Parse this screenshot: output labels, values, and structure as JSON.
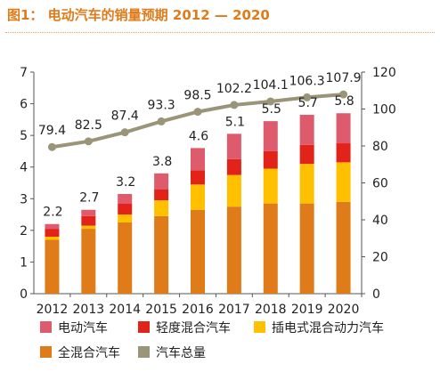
{
  "title": "图1： 电动汽车的销量预期 2012 — 2020",
  "chart_data": {
    "type": "bar",
    "stacked": true,
    "categories": [
      "2012",
      "2013",
      "2014",
      "2015",
      "2016",
      "2017",
      "2018",
      "2019",
      "2020"
    ],
    "series": [
      {
        "name": "全混合汽车",
        "color": "#e07b19",
        "values": [
          1.7,
          2.05,
          2.25,
          2.45,
          2.65,
          2.75,
          2.85,
          2.85,
          2.9
        ]
      },
      {
        "name": "插电式混合动力汽车",
        "color": "#ffc000",
        "values": [
          0.1,
          0.1,
          0.25,
          0.5,
          0.8,
          1.0,
          1.1,
          1.25,
          1.25
        ]
      },
      {
        "name": "轻度混合汽车",
        "color": "#e2231a",
        "values": [
          0.25,
          0.3,
          0.35,
          0.35,
          0.45,
          0.5,
          0.55,
          0.6,
          0.6
        ]
      },
      {
        "name": "电动汽车",
        "color": "#de5b6d",
        "values": [
          0.15,
          0.2,
          0.3,
          0.5,
          0.7,
          0.8,
          0.95,
          0.95,
          0.95
        ]
      }
    ],
    "bar_labels": [
      "2.2",
      "2.7",
      "3.2",
      "3.8",
      "4.6",
      "5.1",
      "5.5",
      "5.7",
      "5.8"
    ],
    "line": {
      "name": "汽车总量",
      "color": "#9a9478",
      "axis": "right",
      "values": [
        79.4,
        82.5,
        87.4,
        93.3,
        98.5,
        102.2,
        104.1,
        106.3,
        107.9
      ],
      "labels": [
        "79.4",
        "82.5",
        "87.4",
        "93.3",
        "98.5",
        "102.2",
        "104.1",
        "106.3",
        "107.9"
      ]
    },
    "y_left": {
      "min": 0,
      "max": 7,
      "ticks": [
        "0",
        "1",
        "2",
        "3",
        "4",
        "5",
        "6",
        "7"
      ]
    },
    "y_right": {
      "min": 0,
      "max": 120,
      "ticks": [
        "0",
        "20",
        "40",
        "60",
        "80",
        "100",
        "120"
      ]
    },
    "legend": [
      {
        "label": "电动汽车",
        "color": "#de5b6d"
      },
      {
        "label": "轻度混合汽车",
        "color": "#e2231a"
      },
      {
        "label": "插电式混合动力汽车",
        "color": "#ffc000"
      },
      {
        "label": "全混合汽车",
        "color": "#e07b19"
      },
      {
        "label": "汽车总量",
        "color": "#9a9478"
      }
    ],
    "legend_position": "bottom"
  }
}
